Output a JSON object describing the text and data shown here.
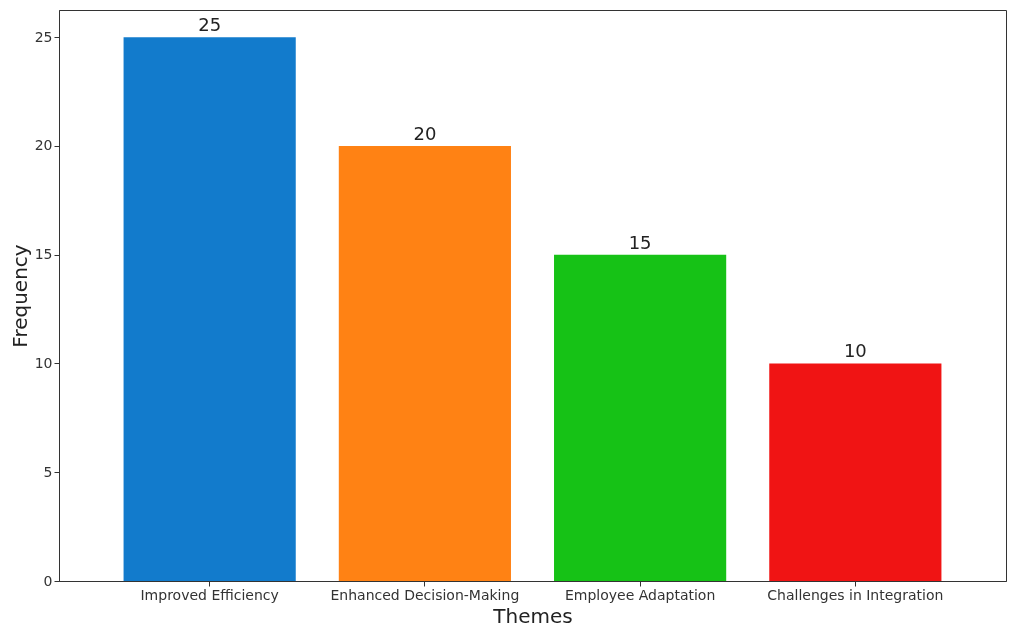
{
  "chart_data": {
    "type": "bar",
    "xlabel": "Themes",
    "ylabel": "Frequency",
    "categories": [
      "Improved Efficiency",
      "Enhanced Decision-Making",
      "Employee Adaptation",
      "Challenges in Integration"
    ],
    "values": [
      25,
      20,
      15,
      10
    ],
    "colors": [
      "#127bcc",
      "#ff8214",
      "#16c216",
      "#f01414"
    ],
    "ylim": [
      0,
      26.25
    ],
    "yticks": [
      0,
      5,
      10,
      15,
      20,
      25
    ],
    "grid": false,
    "data_labels": true
  }
}
